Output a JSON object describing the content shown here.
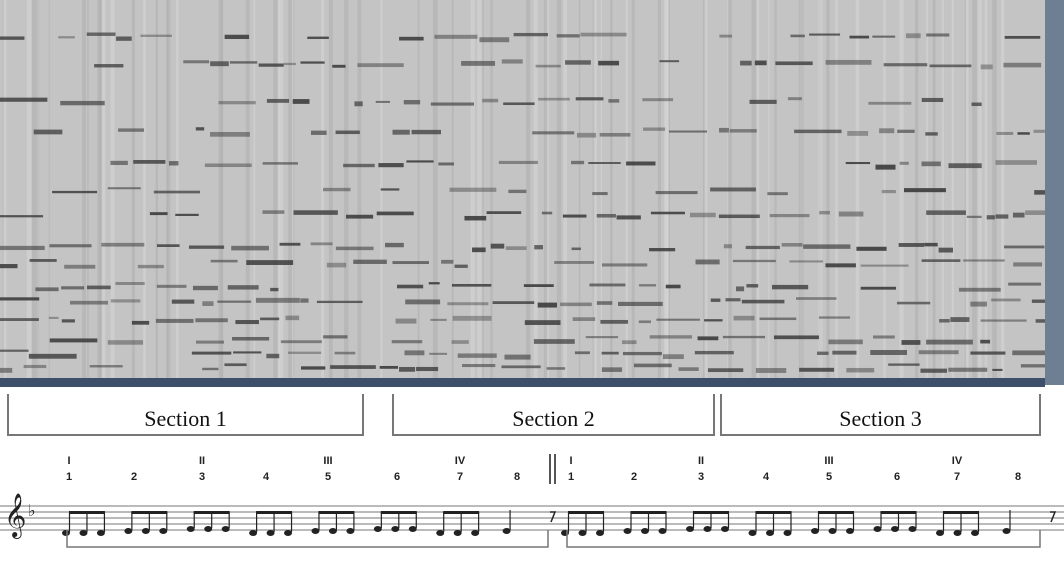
{
  "sections": [
    "Section 1",
    "Section 2",
    "Section 3"
  ],
  "score": {
    "halves": [
      {
        "measures": [
          {
            "number": "1",
            "roman": "I"
          },
          {
            "number": "2"
          },
          {
            "number": "3",
            "roman": "II"
          },
          {
            "number": "4"
          },
          {
            "number": "5",
            "roman": "III"
          },
          {
            "number": "6"
          },
          {
            "number": "7",
            "roman": "IV"
          },
          {
            "number": "8"
          }
        ]
      },
      {
        "measures": [
          {
            "number": "1",
            "roman": "I"
          },
          {
            "number": "2"
          },
          {
            "number": "3",
            "roman": "II"
          },
          {
            "number": "4"
          },
          {
            "number": "5",
            "roman": "III"
          },
          {
            "number": "6"
          },
          {
            "number": "7",
            "roman": "IV"
          },
          {
            "number": "8"
          }
        ]
      }
    ]
  }
}
